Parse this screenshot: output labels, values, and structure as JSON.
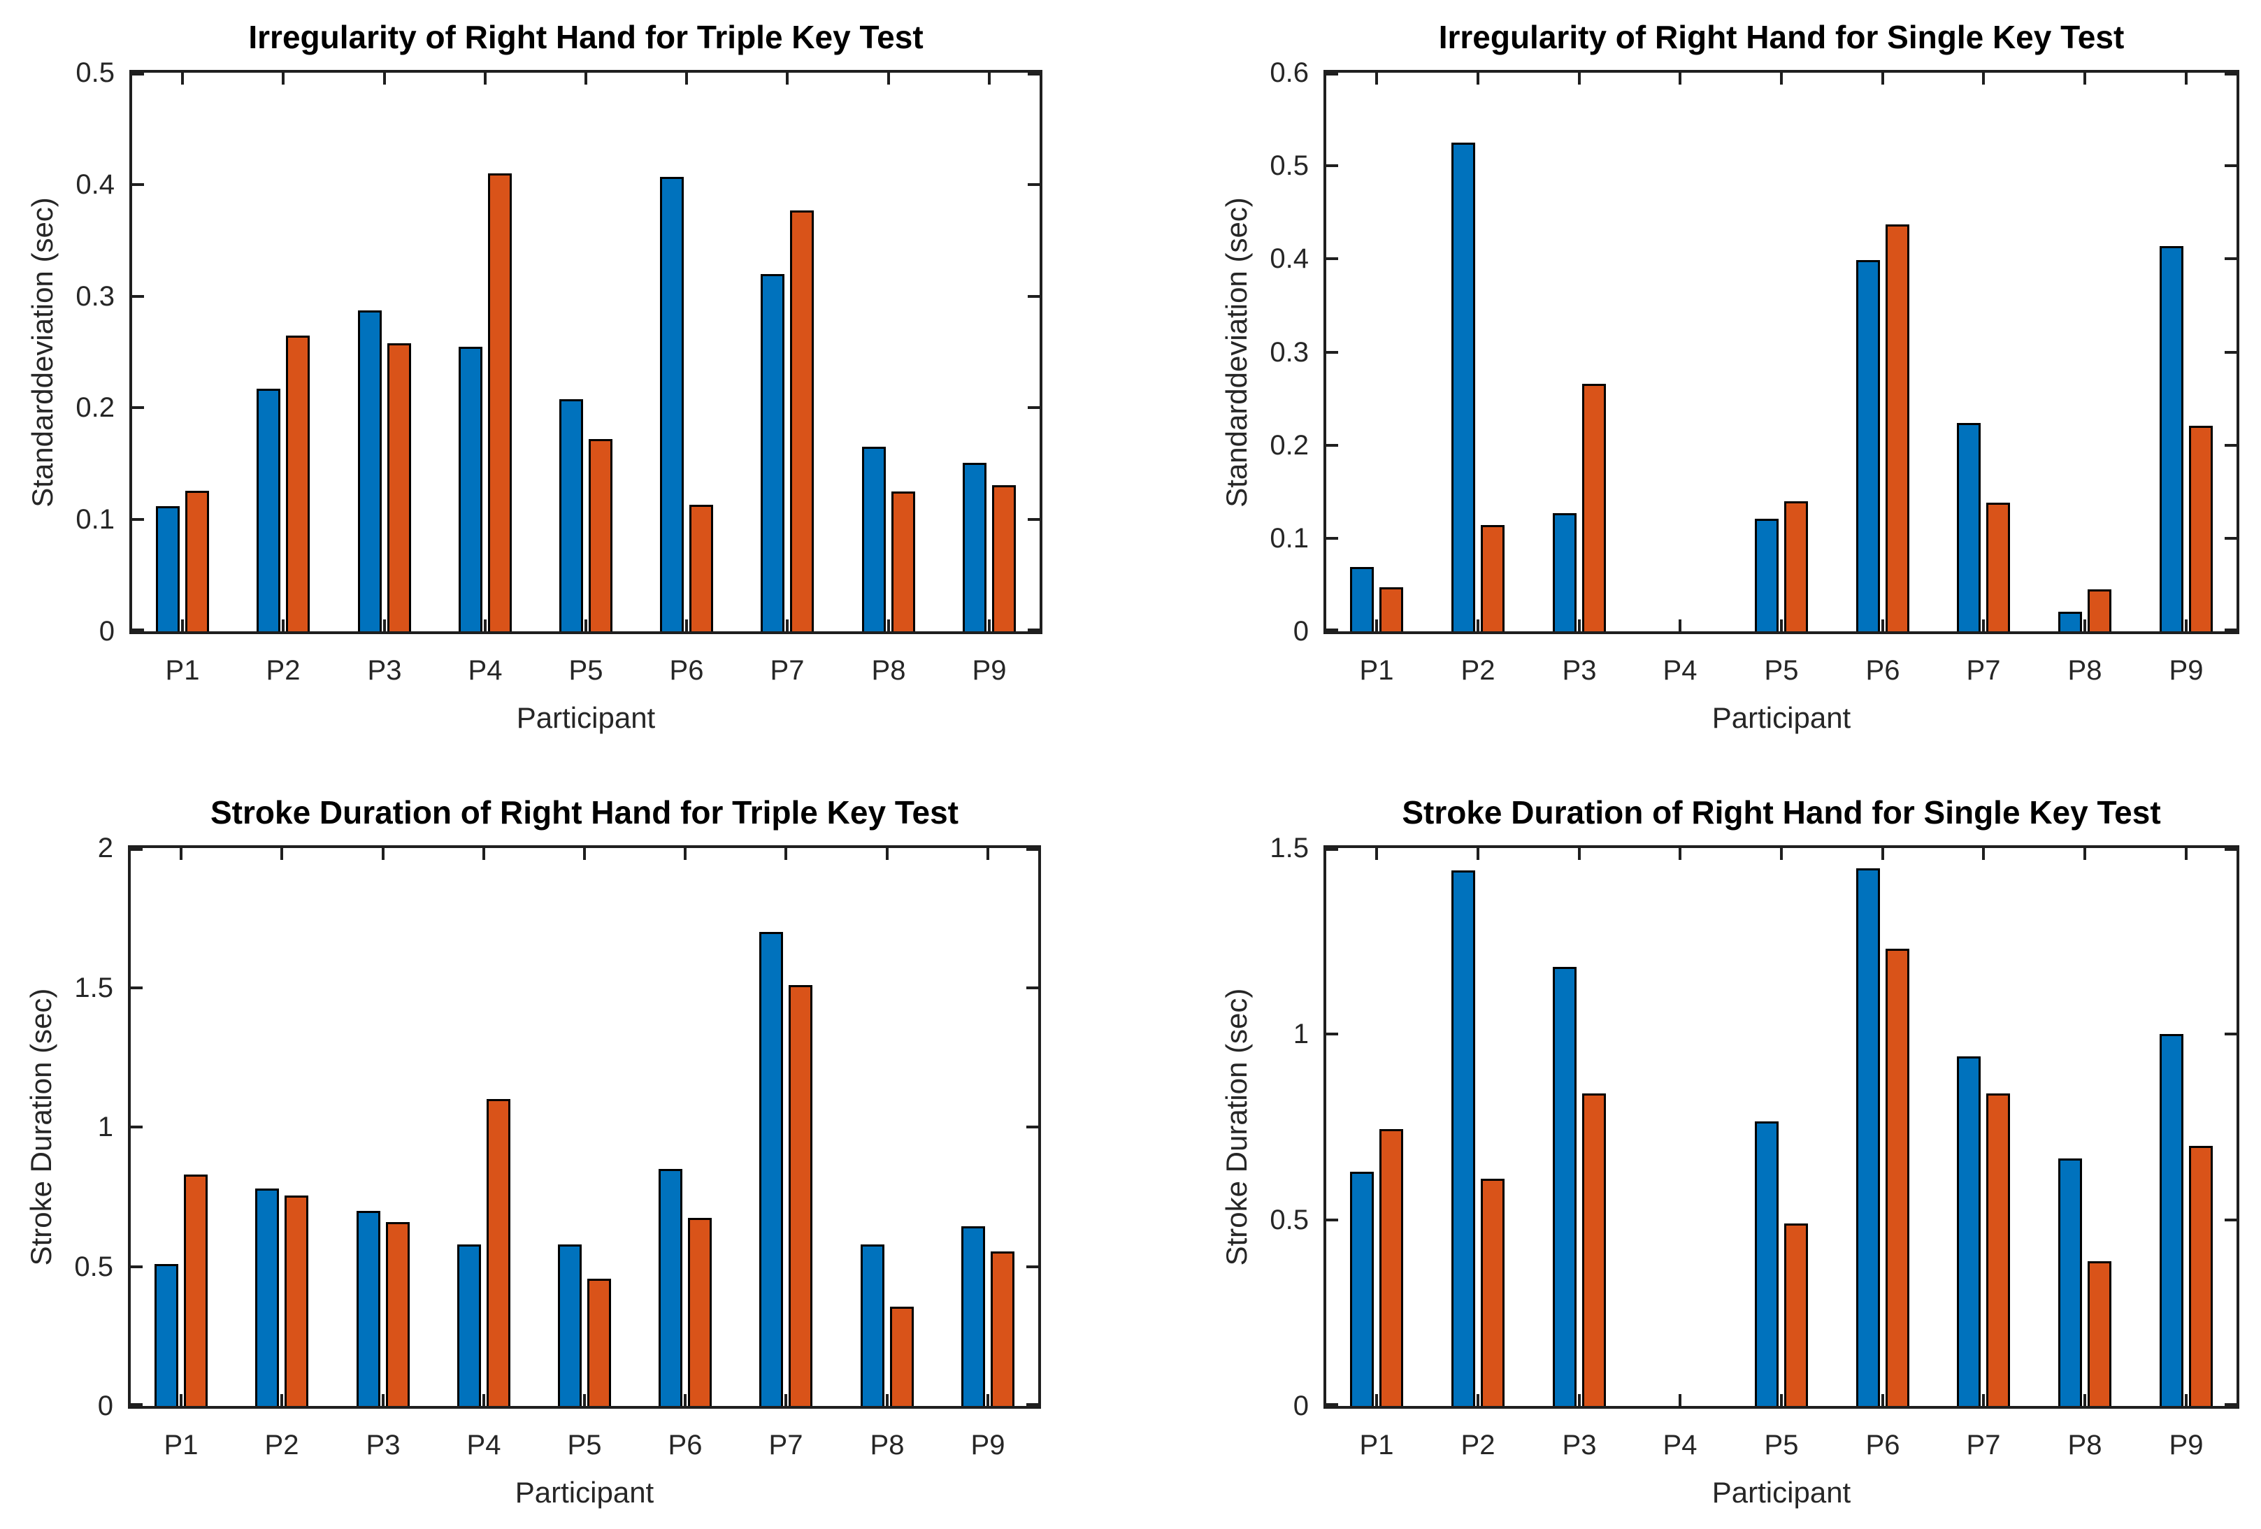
{
  "figure": {
    "background": "#ffffff"
  },
  "colors": {
    "series_blue": "#0072BD",
    "series_orange": "#D95319",
    "bar_edge": "#000000",
    "axis": "#1f1f1f",
    "tick_text": "#262626",
    "title_text": "#000000"
  },
  "chart_data": [
    {
      "type": "bar",
      "title": "Irregularity of Right Hand for Triple Key Test",
      "xlabel": "Participant",
      "ylabel": "Standarddeviation (sec)",
      "categories": [
        "P1",
        "P2",
        "P3",
        "P4",
        "P5",
        "P6",
        "P7",
        "P8",
        "P9"
      ],
      "series": [
        {
          "name": "blue",
          "color": "#0072BD",
          "values": [
            0.112,
            0.217,
            0.287,
            0.255,
            0.208,
            0.407,
            0.32,
            0.165,
            0.151
          ]
        },
        {
          "name": "orange",
          "color": "#D95319",
          "values": [
            0.126,
            0.265,
            0.258,
            0.41,
            0.172,
            0.113,
            0.377,
            0.125,
            0.131
          ]
        }
      ],
      "ylim": [
        0,
        0.5
      ],
      "yticks": [
        0,
        0.1,
        0.2,
        0.3,
        0.4,
        0.5
      ],
      "ytick_labels": [
        "0",
        "0.1",
        "0.2",
        "0.3",
        "0.4",
        "0.5"
      ],
      "grid": false,
      "legend": null
    },
    {
      "type": "bar",
      "title": "Irregularity of Right Hand for Single Key Test",
      "xlabel": "Participant",
      "ylabel": "Standarddeviation (sec)",
      "categories": [
        "P1",
        "P2",
        "P3",
        "P4",
        "P5",
        "P6",
        "P7",
        "P8",
        "P9"
      ],
      "series": [
        {
          "name": "blue",
          "color": "#0072BD",
          "values": [
            0.069,
            0.525,
            0.127,
            0,
            0.121,
            0.399,
            0.224,
            0.021,
            0.414
          ]
        },
        {
          "name": "orange",
          "color": "#D95319",
          "values": [
            0.047,
            0.114,
            0.266,
            0,
            0.14,
            0.437,
            0.138,
            0.045,
            0.221
          ]
        }
      ],
      "ylim": [
        0,
        0.6
      ],
      "yticks": [
        0,
        0.1,
        0.2,
        0.3,
        0.4,
        0.5,
        0.6
      ],
      "ytick_labels": [
        "0",
        "0.1",
        "0.2",
        "0.3",
        "0.4",
        "0.5",
        "0.6"
      ],
      "grid": false,
      "legend": null
    },
    {
      "type": "bar",
      "title": "Stroke Duration of Right Hand for Triple Key Test",
      "xlabel": "Participant",
      "ylabel": "Stroke Duration (sec)",
      "categories": [
        "P1",
        "P2",
        "P3",
        "P4",
        "P5",
        "P6",
        "P7",
        "P8",
        "P9"
      ],
      "series": [
        {
          "name": "blue",
          "color": "#0072BD",
          "values": [
            0.51,
            0.78,
            0.7,
            0.58,
            0.58,
            0.85,
            1.7,
            0.58,
            0.645
          ]
        },
        {
          "name": "orange",
          "color": "#D95319",
          "values": [
            0.83,
            0.755,
            0.66,
            1.1,
            0.455,
            0.675,
            1.51,
            0.355,
            0.555
          ]
        }
      ],
      "ylim": [
        0,
        2
      ],
      "yticks": [
        0,
        0.5,
        1,
        1.5,
        2
      ],
      "ytick_labels": [
        "0",
        "0.5",
        "1",
        "1.5",
        "2"
      ],
      "grid": false,
      "legend": null
    },
    {
      "type": "bar",
      "title": "Stroke Duration of Right Hand for Single Key Test",
      "xlabel": "Participant",
      "ylabel": "Stroke Duration (sec)",
      "categories": [
        "P1",
        "P2",
        "P3",
        "P4",
        "P5",
        "P6",
        "P7",
        "P8",
        "P9"
      ],
      "series": [
        {
          "name": "blue",
          "color": "#0072BD",
          "values": [
            0.63,
            1.44,
            1.18,
            0,
            0.765,
            1.445,
            0.94,
            0.665,
            1.0
          ]
        },
        {
          "name": "orange",
          "color": "#D95319",
          "values": [
            0.745,
            0.61,
            0.84,
            0,
            0.49,
            1.23,
            0.84,
            0.39,
            0.7
          ]
        }
      ],
      "ylim": [
        0,
        1.5
      ],
      "yticks": [
        0,
        0.5,
        1,
        1.5
      ],
      "ytick_labels": [
        "0",
        "0.5",
        "1",
        "1.5"
      ],
      "grid": false,
      "legend": null
    }
  ]
}
